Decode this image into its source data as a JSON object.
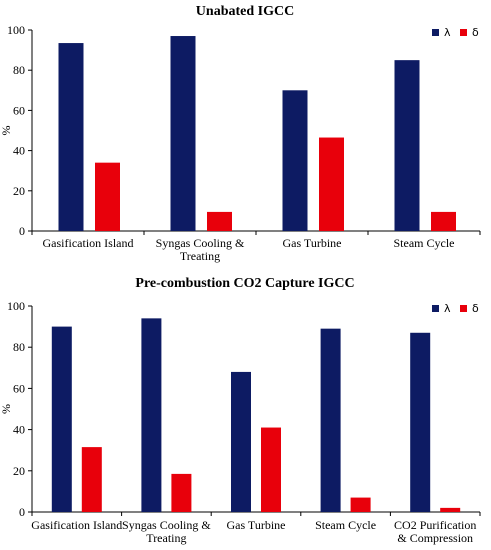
{
  "chart_data": [
    {
      "type": "bar",
      "title": "Unabated IGCC",
      "xlabel": "",
      "ylabel": "%",
      "ylim": [
        0,
        100
      ],
      "yticks": [
        0,
        20,
        40,
        60,
        80,
        100
      ],
      "categories": [
        [
          "Gasification Island"
        ],
        [
          "Syngas Cooling &",
          "Treating"
        ],
        [
          "Gas Turbine"
        ],
        [
          "Steam Cycle"
        ]
      ],
      "series": [
        {
          "name": "λ",
          "color": "#0d1b63",
          "values": [
            93.5,
            97,
            70,
            85
          ]
        },
        {
          "name": "δ",
          "color": "#e8000b",
          "values": [
            34,
            9.5,
            46.5,
            9.5
          ]
        }
      ],
      "legend_position": "top-right",
      "grid": false
    },
    {
      "type": "bar",
      "title": "Pre-combustion CO2 Capture IGCC",
      "xlabel": "",
      "ylabel": "%",
      "ylim": [
        0,
        100
      ],
      "yticks": [
        0,
        20,
        40,
        60,
        80,
        100
      ],
      "categories": [
        [
          "Gasification Island"
        ],
        [
          "Syngas Cooling &",
          "Treating"
        ],
        [
          "Gas Turbine"
        ],
        [
          "Steam Cycle"
        ],
        [
          "CO2 Purification",
          "& Compression"
        ]
      ],
      "series": [
        {
          "name": "λ",
          "color": "#0d1b63",
          "values": [
            90,
            94,
            68,
            89,
            87
          ]
        },
        {
          "name": "δ",
          "color": "#e8000b",
          "values": [
            31.5,
            18.5,
            41,
            7,
            2
          ]
        }
      ],
      "legend_position": "top-right",
      "grid": false
    }
  ]
}
